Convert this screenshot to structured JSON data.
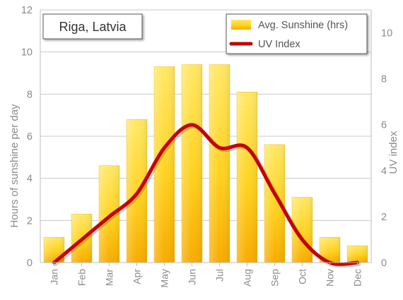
{
  "chart_data": {
    "type": "bar",
    "title": "Riga, Latvia",
    "categories": [
      "Jan",
      "Feb",
      "Mar",
      "Apr",
      "May",
      "Jun",
      "Jul",
      "Aug",
      "Sep",
      "Oct",
      "Nov",
      "Dec"
    ],
    "series": [
      {
        "name": "Avg. Sunshine (hrs)",
        "type": "bar",
        "axis": "left",
        "values": [
          1.2,
          2.3,
          4.6,
          6.8,
          9.3,
          9.4,
          9.4,
          8.1,
          5.6,
          3.1,
          1.2,
          0.8
        ]
      },
      {
        "name": "UV Index",
        "type": "line",
        "axis": "right",
        "values": [
          0,
          1,
          2,
          3,
          5,
          6,
          5,
          5,
          3,
          1,
          0,
          0
        ]
      }
    ],
    "ylabel": "Hours of sunshine per day",
    "y2label": "UV index",
    "ylim": [
      0,
      12
    ],
    "y2lim": [
      0,
      11
    ],
    "yticks": [
      "0",
      "2",
      "4",
      "6",
      "8",
      "10",
      "12"
    ],
    "y2ticks": [
      "0",
      "2",
      "4",
      "6",
      "8",
      "10"
    ],
    "grid": true,
    "legend_position": "top-right",
    "colors": {
      "bar_light": "#ffe25a",
      "bar_dark": "#f5a800",
      "line": "#c40000",
      "grid": "#c8c8c8",
      "axis_text": "#8a8a8a"
    }
  }
}
